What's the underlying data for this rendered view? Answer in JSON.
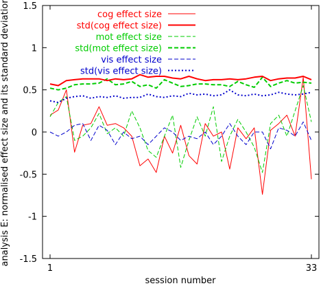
{
  "chart_data": {
    "type": "line",
    "xlabel": "session number",
    "ylabel": "analysis E: normalised effect size and its standard deviation",
    "xlim": [
      1,
      33
    ],
    "ylim": [
      -1.5,
      1.5
    ],
    "xticks": [
      1,
      33
    ],
    "yticks": [
      -1.5,
      -1,
      -0.5,
      0,
      0.5,
      1,
      1.5
    ],
    "ytick_labels": [
      "-1.5",
      "-1",
      "-0.5",
      "0",
      "0.5",
      "1",
      "1.5"
    ],
    "xtick_labels": [
      "1",
      "33"
    ],
    "grid": false,
    "legend_position": "top-right",
    "x": [
      1,
      2,
      3,
      4,
      5,
      6,
      7,
      8,
      9,
      10,
      11,
      12,
      13,
      14,
      15,
      16,
      17,
      18,
      19,
      20,
      21,
      22,
      23,
      24,
      25,
      26,
      27,
      28,
      29,
      30,
      31,
      32,
      33
    ],
    "series": [
      {
        "name": "cog effect size",
        "color": "#ff0000",
        "style": "solid",
        "width": 1,
        "values": [
          0.2,
          0.26,
          0.5,
          -0.24,
          0.08,
          0.1,
          0.3,
          0.08,
          0.1,
          0.05,
          -0.05,
          -0.4,
          -0.32,
          -0.48,
          -0.05,
          -0.25,
          0.08,
          -0.28,
          -0.38,
          0.1,
          -0.05,
          0.0,
          -0.44,
          0.05,
          -0.08,
          0.05,
          -0.74,
          0.02,
          0.1,
          0.2,
          -0.05,
          0.65,
          -0.56
        ]
      },
      {
        "name": "std(cog effect size)",
        "color": "#ff0000",
        "style": "solid",
        "width": 2,
        "values": [
          0.57,
          0.55,
          0.61,
          0.62,
          0.63,
          0.63,
          0.63,
          0.61,
          0.63,
          0.62,
          0.63,
          0.68,
          0.65,
          0.66,
          0.66,
          0.64,
          0.63,
          0.66,
          0.63,
          0.61,
          0.62,
          0.62,
          0.63,
          0.62,
          0.63,
          0.65,
          0.66,
          0.61,
          0.63,
          0.64,
          0.64,
          0.66,
          0.62
        ]
      },
      {
        "name": "mot effect size",
        "color": "#00cc00",
        "style": "dashed",
        "width": 1,
        "values": [
          0.18,
          0.35,
          0.42,
          -0.1,
          -0.05,
          0.05,
          0.22,
          -0.02,
          0.05,
          -0.05,
          0.25,
          0.05,
          -0.22,
          -0.3,
          -0.05,
          0.2,
          -0.42,
          -0.1,
          0.18,
          -0.05,
          0.3,
          -0.35,
          -0.05,
          0.15,
          0.0,
          -0.18,
          -0.48,
          0.1,
          0.2,
          -0.05,
          0.25,
          0.55,
          0.12
        ]
      },
      {
        "name": "std(mot effect size)",
        "color": "#00cc00",
        "style": "dashed",
        "width": 2,
        "values": [
          0.52,
          0.5,
          0.52,
          0.56,
          0.57,
          0.57,
          0.58,
          0.63,
          0.56,
          0.57,
          0.6,
          0.54,
          0.56,
          0.52,
          0.62,
          0.58,
          0.54,
          0.55,
          0.57,
          0.57,
          0.56,
          0.56,
          0.54,
          0.6,
          0.56,
          0.53,
          0.65,
          0.54,
          0.58,
          0.61,
          0.58,
          0.59,
          0.58
        ]
      },
      {
        "name": "vis effect size",
        "color": "#0000cc",
        "style": "dashed",
        "width": 1,
        "values": [
          0.0,
          -0.05,
          0.0,
          0.08,
          0.1,
          -0.1,
          0.08,
          0.02,
          -0.15,
          0.0,
          -0.08,
          -0.05,
          -0.15,
          -0.05,
          0.05,
          0.0,
          -0.1,
          -0.05,
          -0.08,
          0.0,
          -0.15,
          -0.05,
          0.1,
          -0.05,
          -0.15,
          0.0,
          0.0,
          -0.2,
          0.05,
          0.02,
          -0.05,
          0.12,
          -0.1
        ]
      },
      {
        "name": "std(vis effect size)",
        "color": "#0000cc",
        "style": "dotted",
        "width": 2,
        "values": [
          0.37,
          0.35,
          0.4,
          0.42,
          0.43,
          0.4,
          0.42,
          0.41,
          0.43,
          0.4,
          0.41,
          0.41,
          0.45,
          0.42,
          0.41,
          0.43,
          0.42,
          0.46,
          0.44,
          0.45,
          0.43,
          0.44,
          0.5,
          0.44,
          0.43,
          0.45,
          0.43,
          0.44,
          0.47,
          0.45,
          0.44,
          0.45,
          0.47
        ]
      }
    ]
  }
}
